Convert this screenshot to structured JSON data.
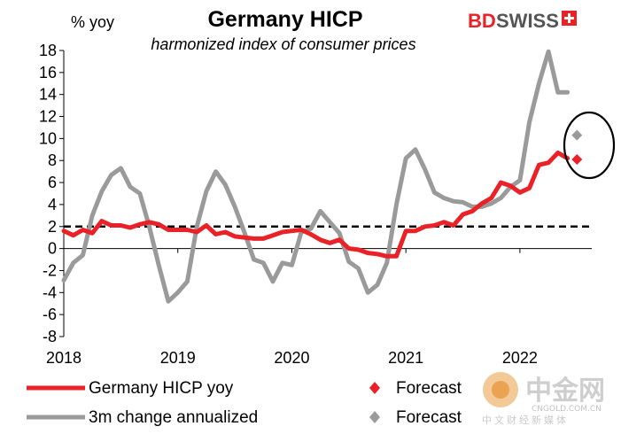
{
  "chart_data": {
    "type": "line",
    "title": "Germany HICP",
    "subtitle": "harmonized index of consumer prices",
    "ylabel": "% yoy",
    "ylim": [
      -8,
      18
    ],
    "yticks": [
      18,
      16,
      14,
      12,
      10,
      8,
      6,
      4,
      2,
      0,
      -2,
      -4,
      -6,
      -8
    ],
    "xlim": [
      2018.0,
      2022.63
    ],
    "xticks": [
      "2018",
      "2019",
      "2020",
      "2021",
      "2022"
    ],
    "reference_line": {
      "y": 2,
      "style": "dashed",
      "color": "#000000"
    },
    "series": [
      {
        "name": "Germany HICP yoy",
        "color": "#ea2227",
        "x": [
          2018.0,
          2018.083,
          2018.167,
          2018.25,
          2018.333,
          2018.417,
          2018.5,
          2018.583,
          2018.667,
          2018.75,
          2018.833,
          2018.917,
          2019.0,
          2019.083,
          2019.167,
          2019.25,
          2019.333,
          2019.417,
          2019.5,
          2019.583,
          2019.667,
          2019.75,
          2019.833,
          2019.917,
          2020.0,
          2020.083,
          2020.167,
          2020.25,
          2020.333,
          2020.417,
          2020.5,
          2020.583,
          2020.667,
          2020.75,
          2020.833,
          2020.917,
          2021.0,
          2021.083,
          2021.167,
          2021.25,
          2021.333,
          2021.417,
          2021.5,
          2021.583,
          2021.667,
          2021.75,
          2021.833,
          2021.917,
          2022.0,
          2022.083,
          2022.167,
          2022.25,
          2022.333,
          2022.417
        ],
        "values": [
          1.6,
          1.2,
          1.7,
          1.4,
          2.5,
          2.1,
          2.1,
          1.9,
          2.2,
          2.4,
          2.2,
          1.7,
          1.7,
          1.7,
          1.5,
          2.1,
          1.3,
          1.5,
          1.1,
          1.0,
          0.9,
          0.9,
          1.2,
          1.5,
          1.6,
          1.7,
          1.3,
          0.8,
          0.5,
          0.8,
          0.0,
          -0.1,
          -0.4,
          -0.5,
          -0.7,
          -0.7,
          1.6,
          1.6,
          2.0,
          2.1,
          2.4,
          2.1,
          3.1,
          3.4,
          4.1,
          4.6,
          6.0,
          5.7,
          5.1,
          5.5,
          7.6,
          7.8,
          8.7,
          8.2
        ]
      },
      {
        "name": "3m change annualized",
        "color": "#9a9a9a",
        "x": [
          2018.0,
          2018.083,
          2018.167,
          2018.25,
          2018.333,
          2018.417,
          2018.5,
          2018.583,
          2018.667,
          2018.75,
          2018.833,
          2018.917,
          2019.0,
          2019.083,
          2019.167,
          2019.25,
          2019.333,
          2019.417,
          2019.5,
          2019.583,
          2019.667,
          2019.75,
          2019.833,
          2019.917,
          2020.0,
          2020.083,
          2020.167,
          2020.25,
          2020.333,
          2020.417,
          2020.5,
          2020.583,
          2020.667,
          2020.75,
          2020.833,
          2020.917,
          2021.0,
          2021.083,
          2021.167,
          2021.25,
          2021.333,
          2021.417,
          2021.5,
          2021.583,
          2021.667,
          2021.75,
          2021.833,
          2021.917,
          2022.0,
          2022.083,
          2022.167,
          2022.25,
          2022.333,
          2022.417
        ],
        "values": [
          -2.9,
          -1.3,
          -0.6,
          3.0,
          5.2,
          6.7,
          7.3,
          5.6,
          5.0,
          2.0,
          -1.5,
          -4.8,
          -4.0,
          -3.0,
          2.0,
          5.2,
          7.0,
          5.8,
          3.8,
          1.5,
          -1.0,
          -1.3,
          -3.0,
          -1.3,
          -1.5,
          1.5,
          1.8,
          3.4,
          2.4,
          1.4,
          -1.2,
          -1.8,
          -4.0,
          -3.3,
          -1.3,
          4.0,
          8.2,
          9.0,
          7.2,
          5.1,
          4.6,
          4.3,
          4.2,
          3.8,
          3.8,
          4.1,
          4.6,
          5.6,
          6.2,
          11.5,
          15.0,
          17.9,
          14.2,
          14.2
        ]
      },
      {
        "name": "Forecast",
        "type": "point",
        "marker": "diamond",
        "color": "#ea2227",
        "x": [
          2022.5
        ],
        "values": [
          8.1
        ]
      },
      {
        "name": "Forecast",
        "type": "point",
        "marker": "diamond",
        "color": "#9a9a9a",
        "x": [
          2022.5
        ],
        "values": [
          10.3
        ]
      }
    ],
    "legend_position": "bottom",
    "annotations": [
      "ellipse around forecast points"
    ]
  },
  "branding": {
    "logo_left": "BD",
    "logo_right": "SWISS",
    "logo_color_left": "#ea2227",
    "logo_color_right": "#555555",
    "watermark_main": "中金网",
    "watermark_url": "CNGOLD.COM.CN",
    "watermark_tag": "中文财经新媒体"
  }
}
